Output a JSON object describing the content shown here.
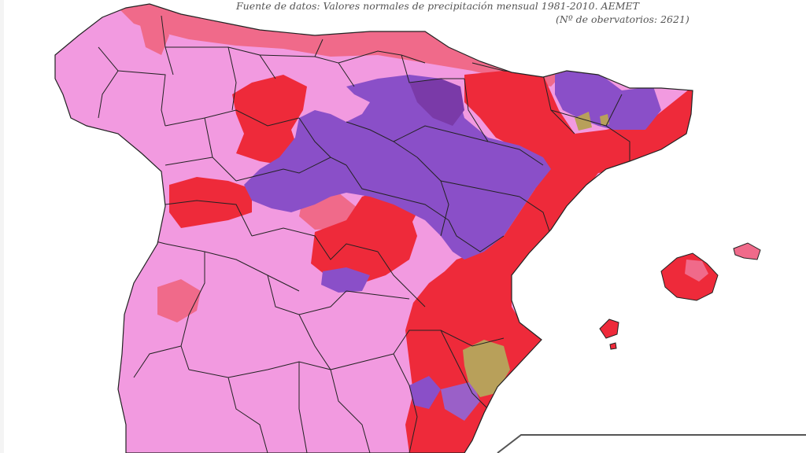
{
  "header": {
    "source": "Fuente de datos: Valores normales de precipitación mensual 1981-2010. AEMET",
    "observatories": "(Nº de obervatorios: 2621)"
  },
  "map": {
    "region": "Spain (peninsula and Balearic Islands)",
    "colors": {
      "pink": "#f29ae0",
      "salmon": "#f06a8a",
      "red": "#ee2a3a",
      "purple": "#8a4fc8",
      "dark_purple": "#7a3aa8",
      "gold": "#b8a05a",
      "border": "#222222"
    }
  }
}
